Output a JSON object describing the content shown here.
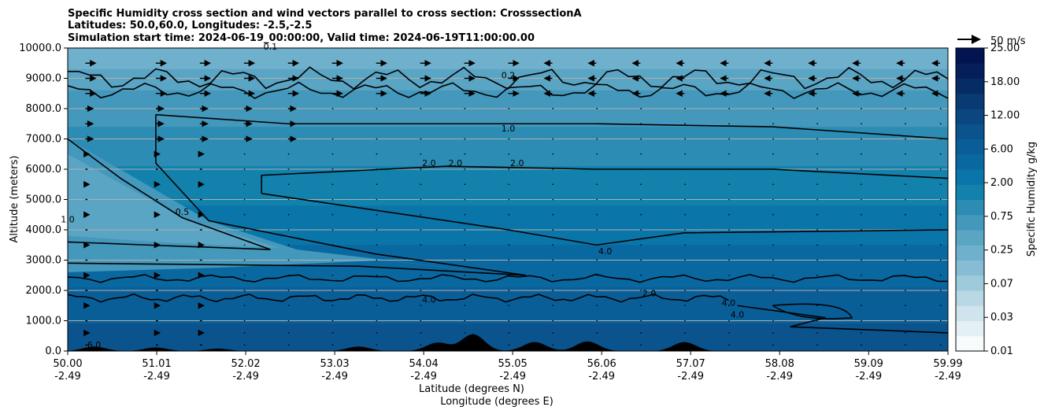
{
  "chart_data": {
    "type": "contour",
    "title_lines": [
      "Specific Humidity cross section and wind vectors parallel to cross section: CrosssectionA",
      "Latitudes: 50.0,60.0, Longitudes: -2.5,-2.5",
      "Simulation start time: 2024-06-19_00:00:00, Valid time: 2024-06-19T11:00:00.00"
    ],
    "ylabel": "Altitude (meters)",
    "xlabel_lines": [
      "Latitude (degrees N)",
      "Longitude (degrees E)"
    ],
    "ylim": [
      0,
      10000
    ],
    "yticks": [
      "0.0",
      "1000.0",
      "2000.0",
      "3000.0",
      "4000.0",
      "5000.0",
      "6000.0",
      "7000.0",
      "8000.0",
      "9000.0",
      "10000.0"
    ],
    "xlim": [
      50.0,
      59.99
    ],
    "xticks": [
      {
        "lat": "50.00",
        "lon": "-2.49"
      },
      {
        "lat": "51.01",
        "lon": "-2.49"
      },
      {
        "lat": "52.02",
        "lon": "-2.49"
      },
      {
        "lat": "53.03",
        "lon": "-2.49"
      },
      {
        "lat": "54.04",
        "lon": "-2.49"
      },
      {
        "lat": "55.05",
        "lon": "-2.49"
      },
      {
        "lat": "56.06",
        "lon": "-2.49"
      },
      {
        "lat": "57.07",
        "lon": "-2.49"
      },
      {
        "lat": "58.08",
        "lon": "-2.49"
      },
      {
        "lat": "59.09",
        "lon": "-2.49"
      },
      {
        "lat": "59.99",
        "lon": "-2.49"
      }
    ],
    "grid": "horizontal",
    "colorbar": {
      "label": "Specific Humidity g/kg",
      "ticks": [
        "0.01",
        "0.03",
        "0.07",
        "0.25",
        "0.75",
        "2.00",
        "6.00",
        "12.00",
        "18.00",
        "25.00"
      ],
      "levels": [
        0.01,
        0.02,
        0.03,
        0.05,
        0.07,
        0.1,
        0.25,
        0.5,
        0.75,
        1.0,
        2.0,
        4.0,
        6.0,
        9.0,
        12.0,
        15.0,
        18.0,
        21.0,
        25.0
      ],
      "colors": [
        "#f7fbfc",
        "#e4f0f4",
        "#cfe4ec",
        "#b7d8e4",
        "#9ecbdc",
        "#86bdd4",
        "#6fb0cc",
        "#5aa4c4",
        "#4498bc",
        "#2c8cb4",
        "#1282ac",
        "#0a75a8",
        "#0a68a0",
        "#0a5e98",
        "#0a538c",
        "#0a4680",
        "#083a74",
        "#062c66",
        "#041f5a",
        "#021552"
      ]
    },
    "contour_labels": [
      "0.1",
      "0.2",
      "0.5",
      "1.0",
      "1.0",
      "2.0",
      "2.0",
      "2.0",
      "2.0",
      "4.0",
      "4.0",
      "4.0",
      "4.0",
      "6.0"
    ],
    "quiver_key": {
      "label": "50 m/s",
      "value": 50
    },
    "wind_rows_m": [
      200,
      600,
      1000,
      1500,
      2000,
      2500,
      3000,
      3500,
      4000,
      4500,
      5000,
      5500,
      6000,
      6500,
      7000,
      7500,
      8000,
      8500,
      9000,
      9500
    ],
    "wind_cols_lat": [
      50.2,
      51.0,
      51.5,
      52.0,
      52.5,
      53.0,
      53.5,
      54.0,
      54.5,
      55.0,
      55.5,
      56.0,
      56.5,
      57.0,
      57.5,
      58.0,
      58.5,
      59.0,
      59.5,
      59.9
    ],
    "terrain_peaks_m": [
      {
        "lat": 50.3,
        "h": 150
      },
      {
        "lat": 51.0,
        "h": 120
      },
      {
        "lat": 51.7,
        "h": 80
      },
      {
        "lat": 53.3,
        "h": 150
      },
      {
        "lat": 54.2,
        "h": 280
      },
      {
        "lat": 54.6,
        "h": 560
      },
      {
        "lat": 55.3,
        "h": 300
      },
      {
        "lat": 55.9,
        "h": 320
      },
      {
        "lat": 57.0,
        "h": 300
      }
    ]
  }
}
